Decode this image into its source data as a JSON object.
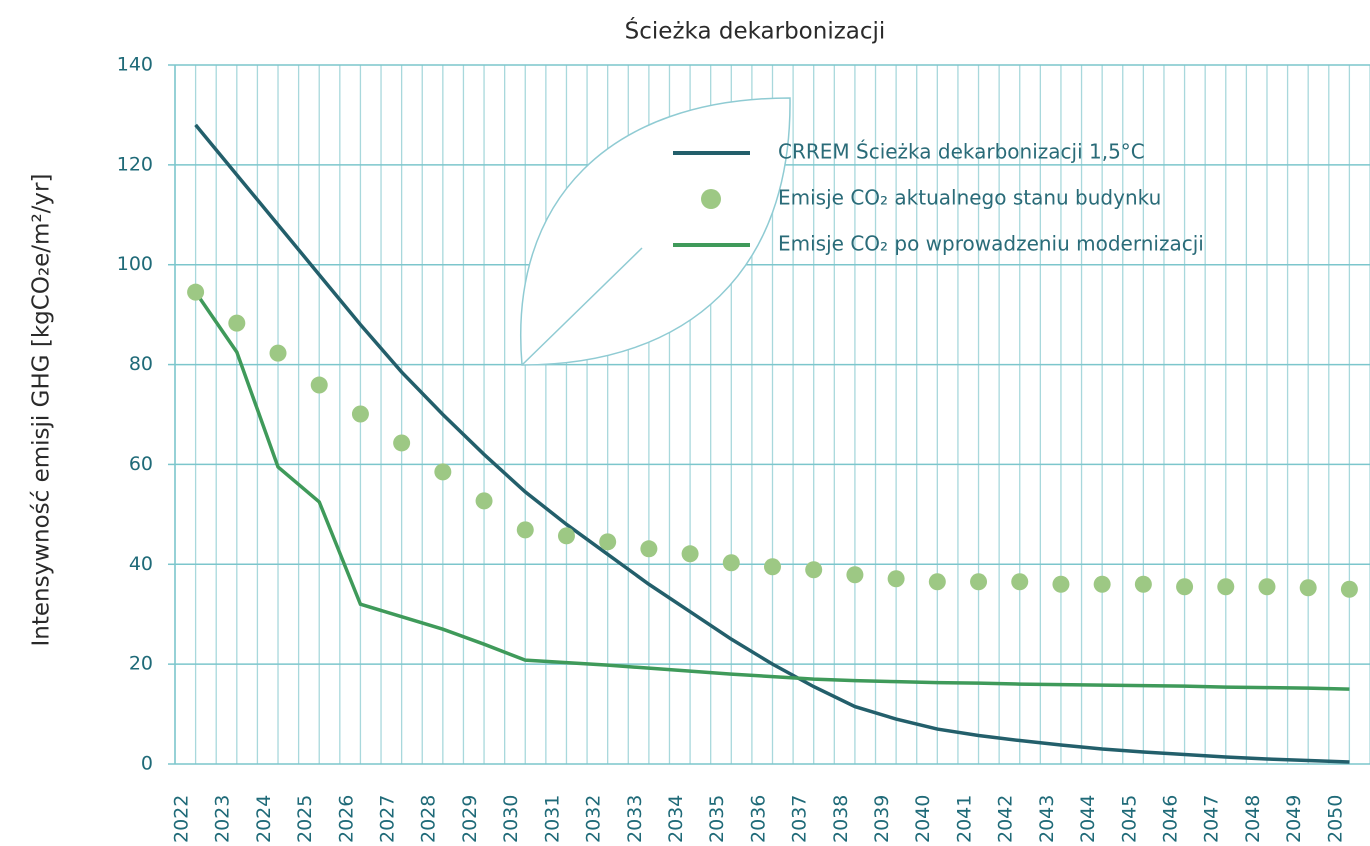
{
  "chart_data": {
    "type": "line",
    "title": "Ścieżka dekarbonizacji",
    "y_label": "Intensywność emisji GHG [kgCO₂e/m²/yr]",
    "categories": [
      "2022",
      "2023",
      "2024",
      "2025",
      "2026",
      "2027",
      "2028",
      "2029",
      "2030",
      "2031",
      "2032",
      "2033",
      "2034",
      "2035",
      "2036",
      "2037",
      "2038",
      "2039",
      "2040",
      "2041",
      "2042",
      "2043",
      "2044",
      "2045",
      "2046",
      "2047",
      "2048",
      "2049",
      "2050"
    ],
    "series": [
      {
        "name": "CRREM Ścieżka dekarbonizacji 1,5°C",
        "color": "#235f6b",
        "style": "line",
        "values": [
          128,
          118,
          108,
          98,
          88,
          78.5,
          70,
          62,
          54.5,
          48,
          42,
          36,
          30.5,
          25,
          20,
          15.5,
          11.5,
          9,
          7,
          5.7,
          4.7,
          3.8,
          3,
          2.4,
          1.9,
          1.4,
          1,
          0.7,
          0.4
        ]
      },
      {
        "name": "Emisje CO₂ aktualnego stanu budynku",
        "color": "#9dc884",
        "style": "dots",
        "values": [
          94.5,
          88.3,
          82.3,
          75.9,
          70.1,
          64.3,
          58.5,
          52.7,
          46.9,
          45.7,
          44.5,
          43.1,
          42.1,
          40.3,
          39.5,
          38.9,
          37.9,
          37.1,
          36.5,
          36.5,
          36.5,
          36,
          36,
          36,
          35.5,
          35.5,
          35.5,
          35.3,
          35
        ]
      },
      {
        "name": "Emisje CO₂ po wprowadzeniu modernizacji",
        "color": "#3f9a5a",
        "style": "line",
        "values": [
          94.5,
          82.5,
          59.5,
          52.5,
          32,
          29.5,
          27,
          24,
          20.8,
          20.3,
          19.8,
          19.2,
          18.6,
          18,
          17.5,
          17,
          16.7,
          16.5,
          16.3,
          16.2,
          16,
          15.9,
          15.8,
          15.7,
          15.6,
          15.4,
          15.3,
          15.2,
          15
        ]
      }
    ],
    "ylim": [
      0,
      140
    ],
    "yticks": [
      0,
      20,
      40,
      60,
      80,
      100,
      120,
      140
    ],
    "grid": true
  }
}
